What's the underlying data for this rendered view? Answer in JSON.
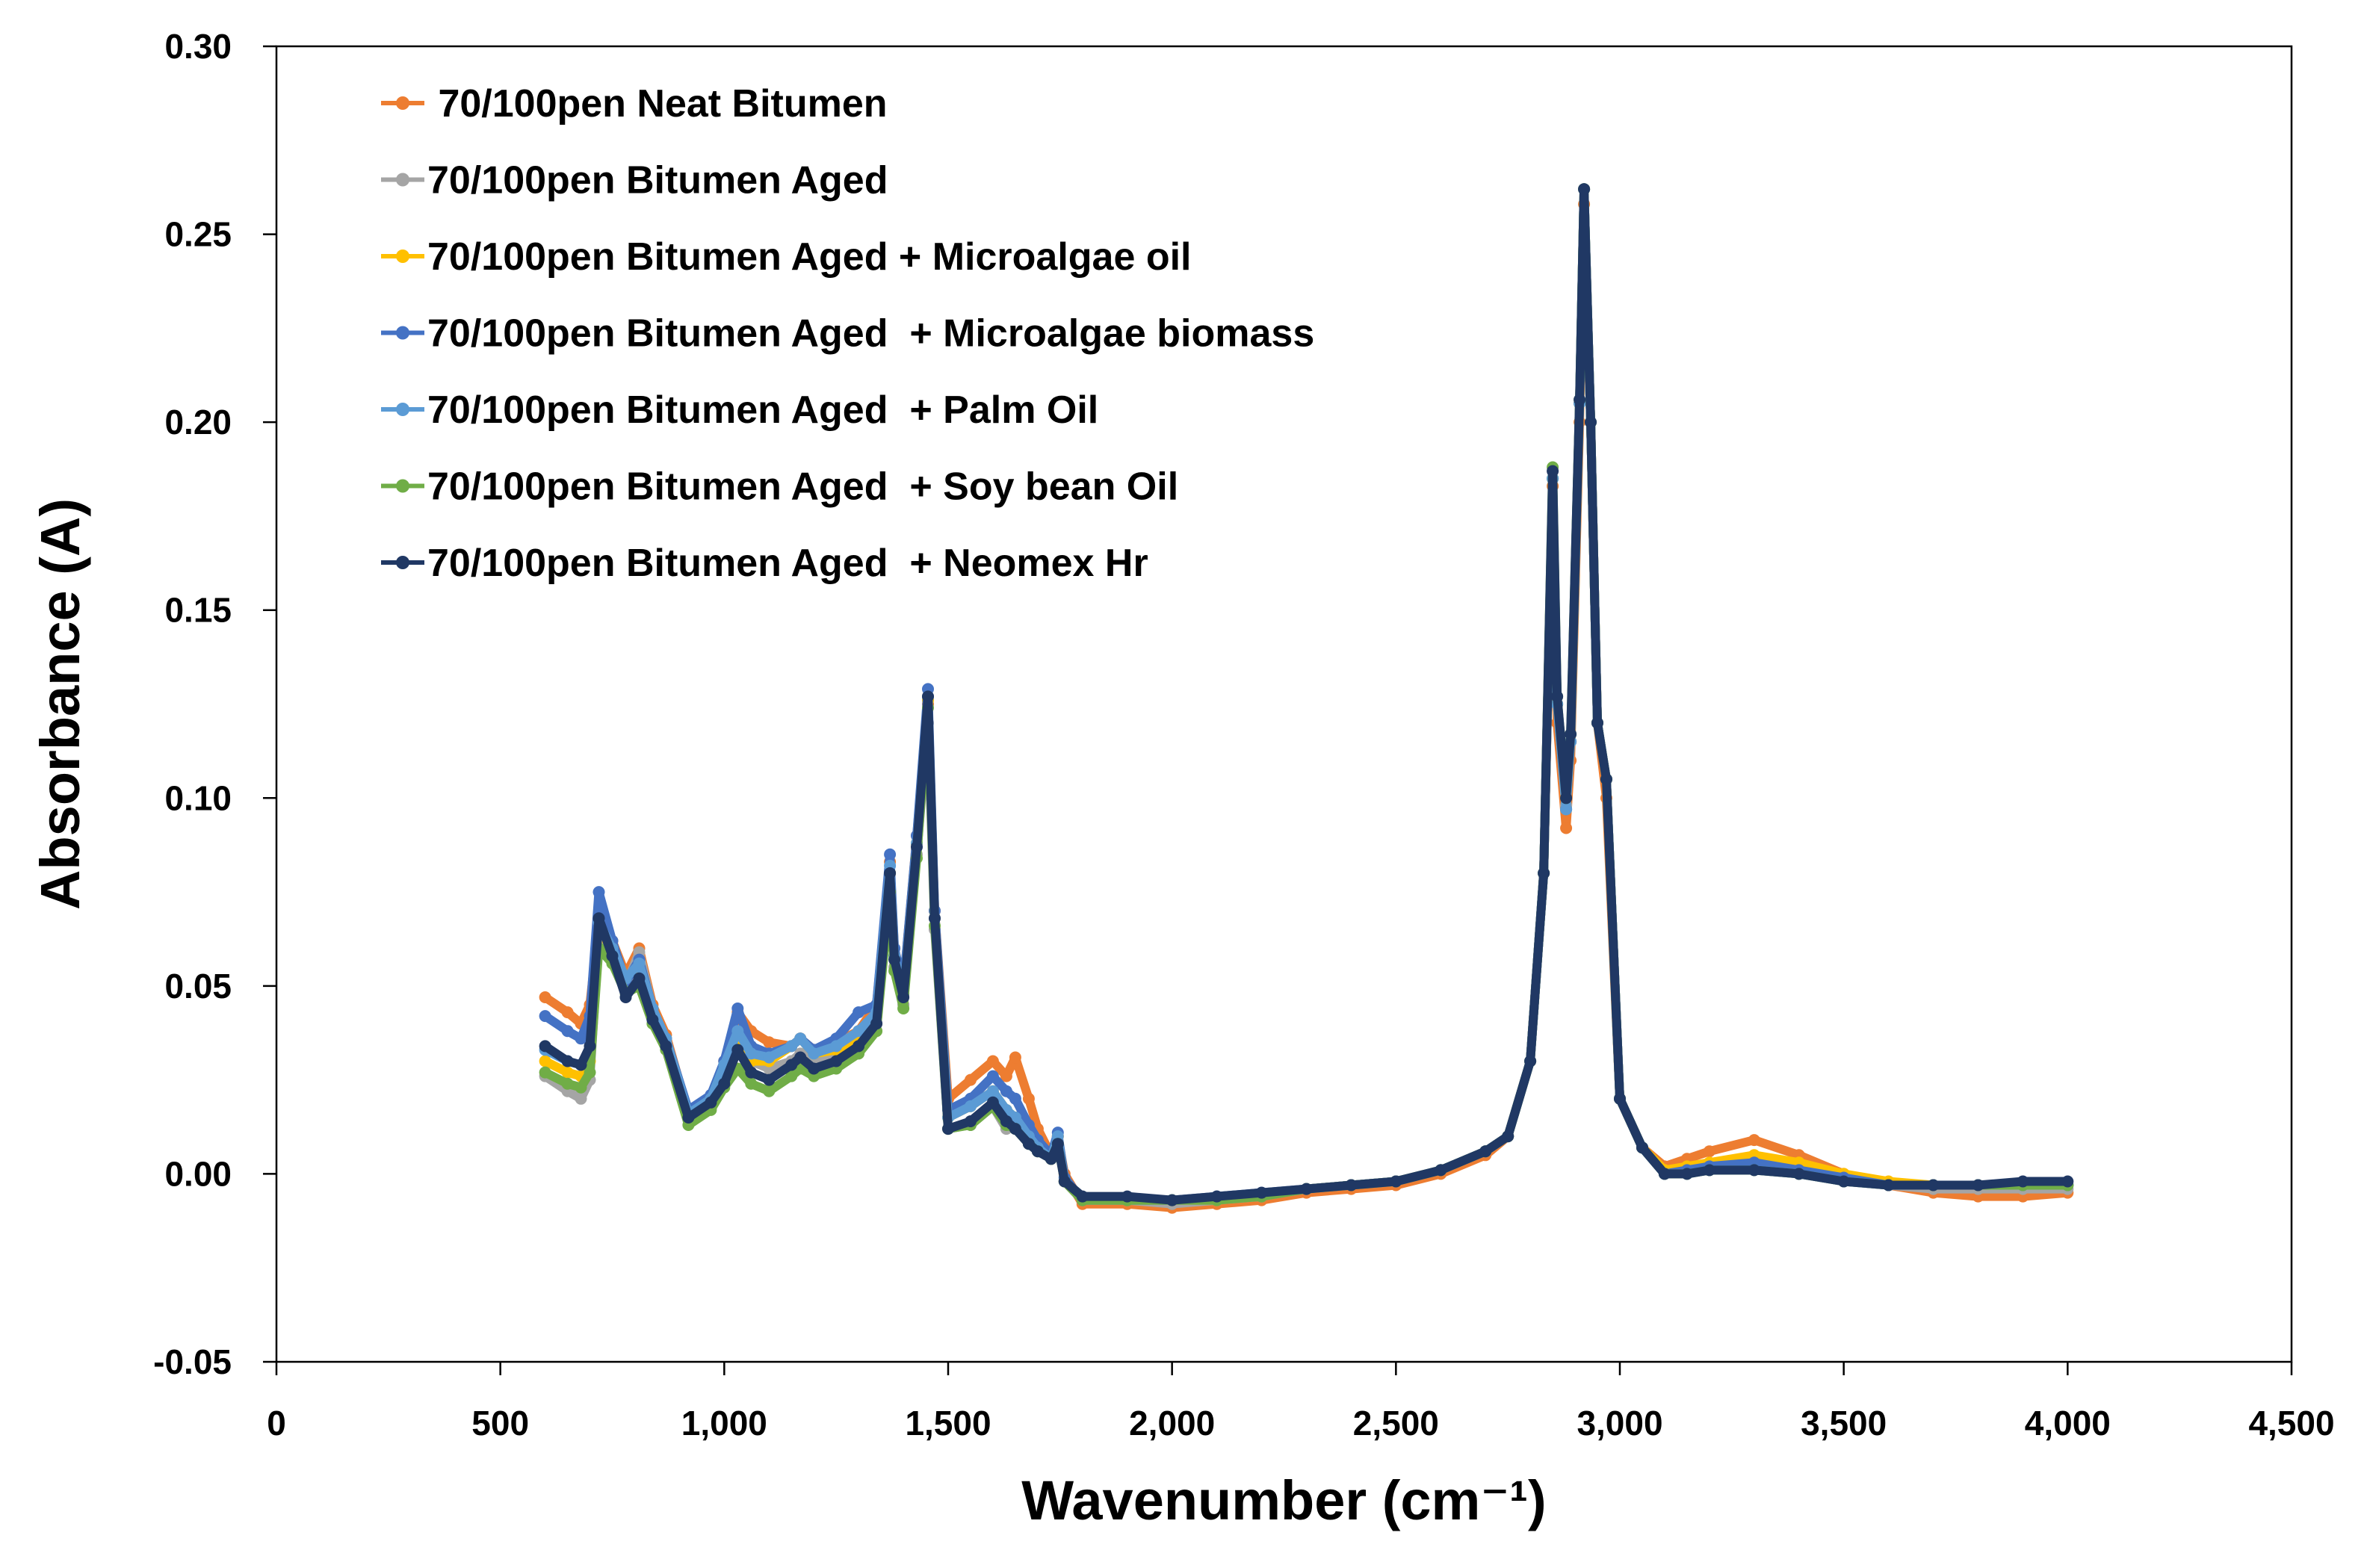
{
  "chart_data": {
    "type": "line",
    "title": "",
    "xlabel": "Wavenumber (cm⁻¹)",
    "ylabel": "Absorbance (A)",
    "xlim": [
      0,
      4500
    ],
    "ylim": [
      -0.05,
      0.3
    ],
    "x_ticks": [
      0,
      500,
      1000,
      1500,
      2000,
      2500,
      3000,
      3500,
      4000,
      4500
    ],
    "x_tick_labels": [
      "0",
      "500",
      "1,000",
      "1,500",
      "2,000",
      "2,500",
      "3,000",
      "3,500",
      "4,000",
      "4,500"
    ],
    "y_ticks": [
      -0.05,
      0.0,
      0.05,
      0.1,
      0.15,
      0.2,
      0.25,
      0.3
    ],
    "y_tick_labels": [
      "-0.05",
      "0.00",
      "0.05",
      "0.10",
      "0.15",
      "0.20",
      "0.25",
      "0.30"
    ],
    "grid": false,
    "legend_position": "top-left",
    "x": [
      600,
      650,
      680,
      700,
      720,
      750,
      780,
      810,
      840,
      870,
      920,
      970,
      1000,
      1030,
      1060,
      1100,
      1150,
      1170,
      1200,
      1250,
      1300,
      1340,
      1370,
      1380,
      1400,
      1430,
      1455,
      1470,
      1500,
      1550,
      1600,
      1630,
      1650,
      1680,
      1700,
      1730,
      1745,
      1760,
      1800,
      1900,
      2000,
      2100,
      2200,
      2300,
      2400,
      2500,
      2600,
      2700,
      2750,
      2800,
      2830,
      2850,
      2860,
      2880,
      2890,
      2910,
      2920,
      2935,
      2950,
      2970,
      3000,
      3050,
      3100,
      3150,
      3200,
      3300,
      3400,
      3500,
      3600,
      3700,
      3800,
      3900,
      4000
    ],
    "series": [
      {
        "name": " 70/100pen Neat Bitumen",
        "color": "#ED7D31",
        "values": [
          0.047,
          0.043,
          0.04,
          0.045,
          0.067,
          0.062,
          0.053,
          0.06,
          0.045,
          0.037,
          0.016,
          0.02,
          0.03,
          0.043,
          0.038,
          0.035,
          0.034,
          0.036,
          0.033,
          0.035,
          0.038,
          0.045,
          0.083,
          0.06,
          0.05,
          0.09,
          0.125,
          0.07,
          0.02,
          0.025,
          0.03,
          0.026,
          0.031,
          0.02,
          0.012,
          0.005,
          0.01,
          0.0,
          -0.008,
          -0.008,
          -0.009,
          -0.008,
          -0.007,
          -0.005,
          -0.004,
          -0.003,
          0.0,
          0.005,
          0.01,
          0.03,
          0.08,
          0.183,
          0.12,
          0.092,
          0.11,
          0.2,
          0.258,
          0.2,
          0.12,
          0.1,
          0.02,
          0.007,
          0.002,
          0.004,
          0.006,
          0.009,
          0.005,
          0.0,
          -0.003,
          -0.005,
          -0.006,
          -0.006,
          -0.005
        ]
      },
      {
        "name": "70/100pen Bitumen Aged",
        "color": "#A5A5A5",
        "values": [
          0.026,
          0.022,
          0.02,
          0.025,
          0.063,
          0.058,
          0.05,
          0.059,
          0.044,
          0.035,
          0.015,
          0.019,
          0.027,
          0.032,
          0.03,
          0.028,
          0.03,
          0.032,
          0.03,
          0.031,
          0.034,
          0.04,
          0.077,
          0.055,
          0.045,
          0.085,
          0.12,
          0.065,
          0.012,
          0.013,
          0.018,
          0.012,
          0.013,
          0.01,
          0.007,
          0.004,
          0.008,
          -0.002,
          -0.007,
          -0.007,
          -0.008,
          -0.007,
          -0.006,
          -0.004,
          -0.003,
          -0.002,
          0.001,
          0.006,
          0.01,
          0.03,
          0.08,
          0.185,
          0.125,
          0.098,
          0.115,
          0.205,
          0.262,
          0.2,
          0.12,
          0.105,
          0.02,
          0.007,
          0.0,
          0.001,
          0.002,
          0.004,
          0.002,
          -0.001,
          -0.003,
          -0.004,
          -0.004,
          -0.004,
          -0.004
        ]
      },
      {
        "name": "70/100pen Bitumen Aged + Microalgae oil",
        "color": "#FFC000",
        "values": [
          0.03,
          0.027,
          0.026,
          0.03,
          0.065,
          0.06,
          0.052,
          0.055,
          0.044,
          0.036,
          0.016,
          0.02,
          0.027,
          0.035,
          0.03,
          0.03,
          0.034,
          0.036,
          0.032,
          0.033,
          0.036,
          0.042,
          0.08,
          0.058,
          0.048,
          0.088,
          0.126,
          0.068,
          0.015,
          0.018,
          0.022,
          0.017,
          0.015,
          0.01,
          0.007,
          0.004,
          0.01,
          -0.002,
          -0.007,
          -0.007,
          -0.007,
          -0.007,
          -0.006,
          -0.004,
          -0.003,
          -0.002,
          0.001,
          0.006,
          0.01,
          0.03,
          0.08,
          0.185,
          0.125,
          0.097,
          0.115,
          0.205,
          0.262,
          0.2,
          0.12,
          0.105,
          0.02,
          0.007,
          0.001,
          0.002,
          0.003,
          0.005,
          0.003,
          0.0,
          -0.002,
          -0.003,
          -0.003,
          -0.003,
          -0.003
        ]
      },
      {
        "name": "70/100pen Bitumen Aged  + Microalgae biomass",
        "color": "#4472C4",
        "values": [
          0.042,
          0.038,
          0.036,
          0.042,
          0.075,
          0.062,
          0.051,
          0.057,
          0.044,
          0.036,
          0.017,
          0.021,
          0.03,
          0.044,
          0.034,
          0.032,
          0.034,
          0.036,
          0.033,
          0.036,
          0.043,
          0.045,
          0.085,
          0.06,
          0.05,
          0.09,
          0.129,
          0.07,
          0.017,
          0.02,
          0.026,
          0.022,
          0.02,
          0.013,
          0.009,
          0.005,
          0.011,
          -0.001,
          -0.007,
          -0.007,
          -0.007,
          -0.006,
          -0.005,
          -0.004,
          -0.003,
          -0.002,
          0.001,
          0.006,
          0.01,
          0.03,
          0.08,
          0.185,
          0.125,
          0.097,
          0.115,
          0.205,
          0.262,
          0.2,
          0.12,
          0.105,
          0.02,
          0.007,
          0.0,
          0.001,
          0.002,
          0.003,
          0.001,
          -0.001,
          -0.003,
          -0.003,
          -0.003,
          -0.003,
          -0.003
        ]
      },
      {
        "name": "70/100pen Bitumen Aged  + Palm Oil",
        "color": "#5B9BD5",
        "values": [
          0.033,
          0.03,
          0.029,
          0.033,
          0.067,
          0.06,
          0.052,
          0.056,
          0.044,
          0.036,
          0.016,
          0.02,
          0.029,
          0.038,
          0.032,
          0.031,
          0.034,
          0.036,
          0.032,
          0.034,
          0.038,
          0.043,
          0.082,
          0.058,
          0.048,
          0.088,
          0.127,
          0.068,
          0.015,
          0.018,
          0.022,
          0.017,
          0.015,
          0.01,
          0.007,
          0.004,
          0.01,
          -0.002,
          -0.007,
          -0.007,
          -0.007,
          -0.007,
          -0.006,
          -0.004,
          -0.003,
          -0.002,
          0.001,
          0.006,
          0.01,
          0.03,
          0.08,
          0.185,
          0.125,
          0.097,
          0.115,
          0.205,
          0.262,
          0.2,
          0.12,
          0.105,
          0.02,
          0.007,
          0.0,
          0.0,
          0.001,
          0.001,
          0.0,
          -0.002,
          -0.003,
          -0.003,
          -0.003,
          -0.003,
          -0.003
        ]
      },
      {
        "name": "70/100pen Bitumen Aged  + Soy bean Oil",
        "color": "#70AD47",
        "values": [
          0.027,
          0.024,
          0.023,
          0.027,
          0.06,
          0.056,
          0.048,
          0.05,
          0.04,
          0.033,
          0.013,
          0.017,
          0.023,
          0.028,
          0.024,
          0.022,
          0.026,
          0.028,
          0.026,
          0.028,
          0.032,
          0.038,
          0.075,
          0.054,
          0.044,
          0.084,
          0.124,
          0.066,
          0.012,
          0.013,
          0.018,
          0.013,
          0.012,
          0.008,
          0.006,
          0.004,
          0.008,
          -0.002,
          -0.007,
          -0.007,
          -0.007,
          -0.007,
          -0.006,
          -0.004,
          -0.003,
          -0.002,
          0.001,
          0.006,
          0.01,
          0.03,
          0.08,
          0.188,
          0.127,
          0.1,
          0.117,
          0.206,
          0.262,
          0.2,
          0.12,
          0.105,
          0.02,
          0.007,
          0.0,
          0.0,
          0.001,
          0.001,
          0.0,
          -0.002,
          -0.003,
          -0.003,
          -0.003,
          -0.003,
          -0.003
        ]
      },
      {
        "name": "70/100pen Bitumen Aged  + Neomex Hr",
        "color": "#203864",
        "values": [
          0.034,
          0.03,
          0.029,
          0.034,
          0.068,
          0.058,
          0.047,
          0.052,
          0.041,
          0.034,
          0.015,
          0.019,
          0.024,
          0.033,
          0.027,
          0.025,
          0.029,
          0.031,
          0.028,
          0.03,
          0.034,
          0.04,
          0.08,
          0.057,
          0.047,
          0.087,
          0.127,
          0.068,
          0.012,
          0.014,
          0.019,
          0.014,
          0.012,
          0.008,
          0.006,
          0.004,
          0.008,
          -0.002,
          -0.006,
          -0.006,
          -0.007,
          -0.006,
          -0.005,
          -0.004,
          -0.003,
          -0.002,
          0.001,
          0.006,
          0.01,
          0.03,
          0.08,
          0.187,
          0.127,
          0.1,
          0.117,
          0.206,
          0.262,
          0.2,
          0.12,
          0.105,
          0.02,
          0.007,
          0.0,
          0.0,
          0.001,
          0.001,
          0.0,
          -0.002,
          -0.003,
          -0.003,
          -0.003,
          -0.002,
          -0.002
        ]
      }
    ]
  }
}
